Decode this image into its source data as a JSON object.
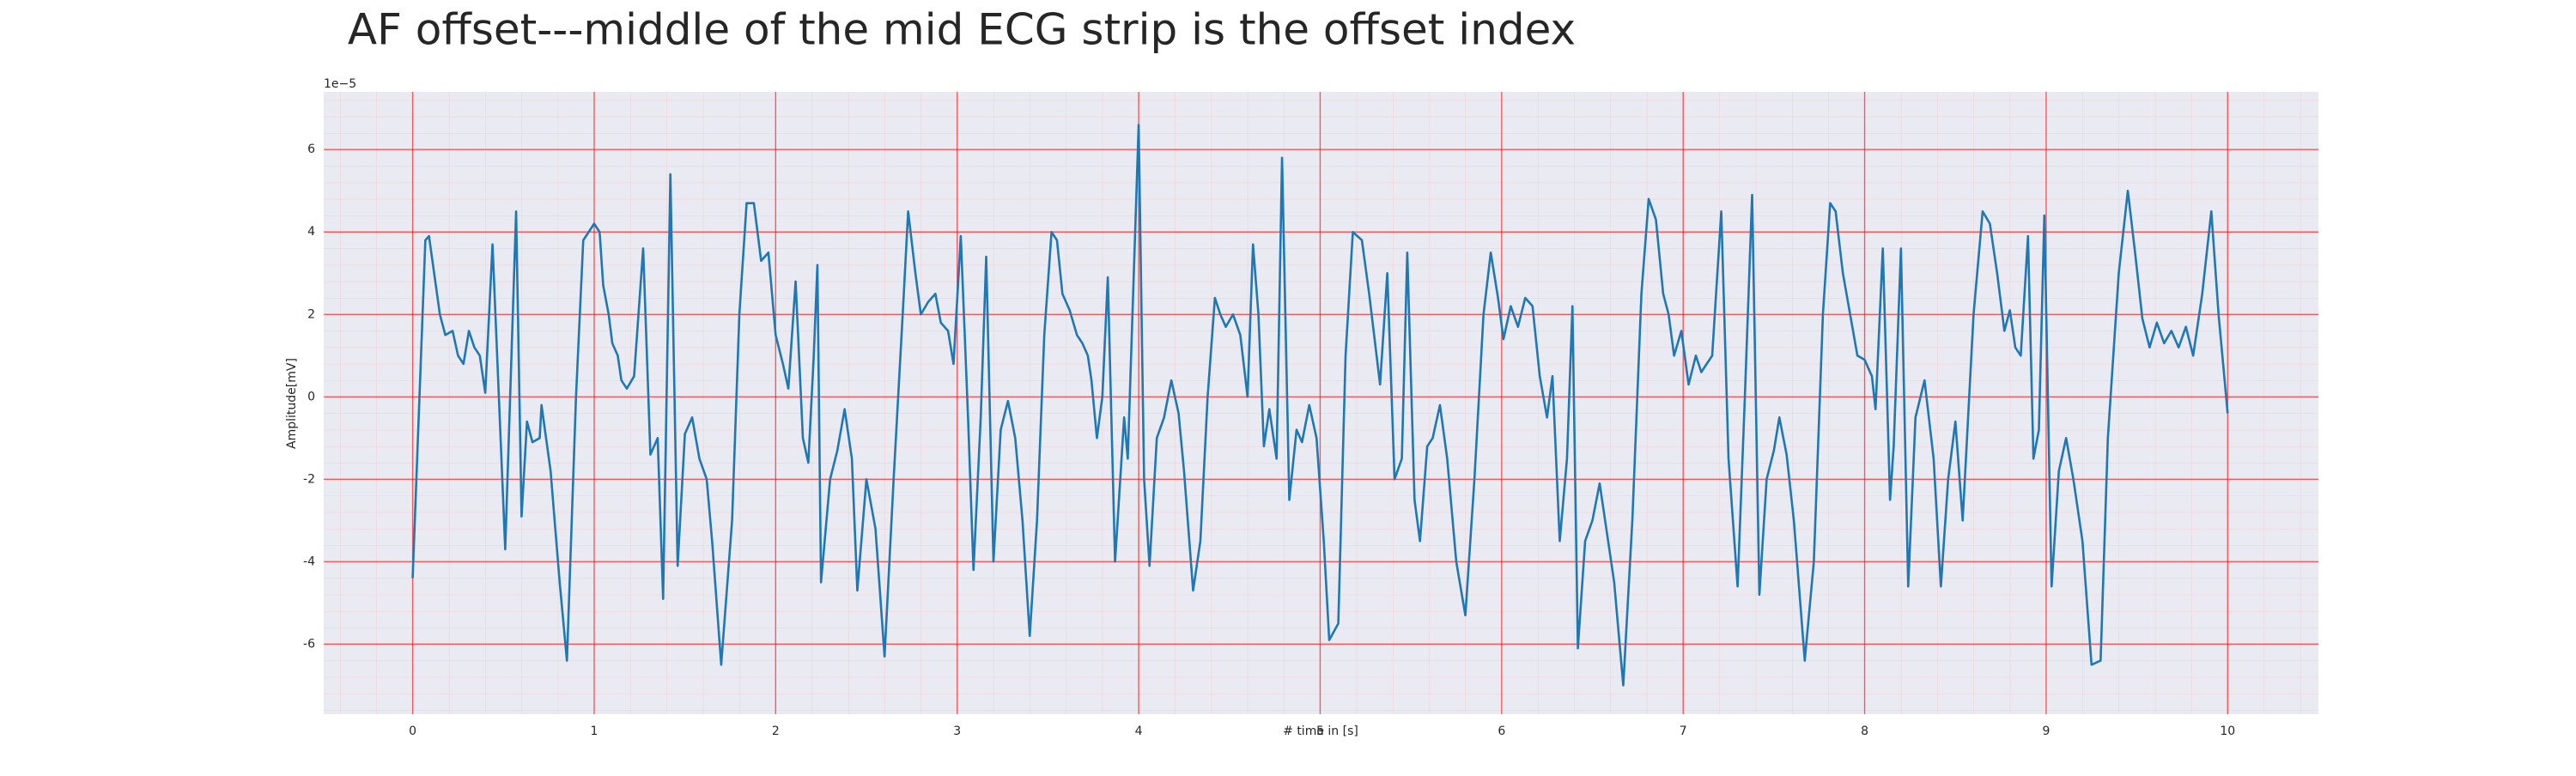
{
  "chart_data": {
    "type": "line",
    "title": "AF offset---middle of the mid ECG strip is the offset index",
    "xlabel": "# time in [s]",
    "ylabel": "Amplitude[mV]",
    "y_offset_label": "1e−5",
    "color": "#1f77b4",
    "grid": true,
    "grid_color": "#ff0000",
    "xlim": [
      -0.49,
      10.5
    ],
    "ylim": [
      -7.7,
      7.4
    ],
    "xticks": [
      0,
      1,
      2,
      3,
      4,
      5,
      6,
      7,
      8,
      9,
      10
    ],
    "yticks": [
      -6,
      -4,
      -2,
      0,
      2,
      4,
      6
    ],
    "x": [
      0,
      0.07,
      0.09,
      0.15,
      0.18,
      0.22,
      0.25,
      0.28,
      0.31,
      0.34,
      0.37,
      0.4,
      0.44,
      0.51,
      0.57,
      0.6,
      0.63,
      0.66,
      0.7,
      0.71,
      0.76,
      0.81,
      0.85,
      0.9,
      0.94,
      1.0,
      1.03,
      1.05,
      1.08,
      1.1,
      1.13,
      1.15,
      1.18,
      1.22,
      1.27,
      1.31,
      1.35,
      1.38,
      1.42,
      1.46,
      1.5,
      1.54,
      1.58,
      1.62,
      1.65,
      1.7,
      1.76,
      1.8,
      1.84,
      1.88,
      1.92,
      1.96,
      2.0,
      2.04,
      2.07,
      2.11,
      2.15,
      2.18,
      2.21,
      2.23,
      2.25,
      2.3,
      2.34,
      2.38,
      2.42,
      2.45,
      2.5,
      2.55,
      2.6,
      2.65,
      2.7,
      2.73,
      2.77,
      2.8,
      2.84,
      2.88,
      2.91,
      2.95,
      2.98,
      3.02,
      3.06,
      3.09,
      3.13,
      3.16,
      3.2,
      3.24,
      3.28,
      3.32,
      3.36,
      3.4,
      3.44,
      3.48,
      3.52,
      3.55,
      3.58,
      3.62,
      3.66,
      3.69,
      3.72,
      3.74,
      3.77,
      3.8,
      3.83,
      3.87,
      3.92,
      3.94,
      4.0,
      4.03,
      4.06,
      4.1,
      4.14,
      4.18,
      4.22,
      4.25,
      4.3,
      4.34,
      4.38,
      4.42,
      4.45,
      4.48,
      4.52,
      4.56,
      4.6,
      4.63,
      4.66,
      4.69,
      4.72,
      4.76,
      4.79,
      4.83,
      4.87,
      4.9,
      4.94,
      4.98,
      5.02,
      5.05,
      5.1,
      5.14,
      5.18,
      5.23,
      5.27,
      5.3,
      5.33,
      5.37,
      5.41,
      5.45,
      5.48,
      5.52,
      5.55,
      5.59,
      5.62,
      5.66,
      5.7,
      5.75,
      5.8,
      5.85,
      5.9,
      5.94,
      5.98,
      6.01,
      6.05,
      6.09,
      6.13,
      6.17,
      6.21,
      6.25,
      6.28,
      6.32,
      6.36,
      6.39,
      6.42,
      6.46,
      6.5,
      6.54,
      6.57,
      6.62,
      6.67,
      6.72,
      6.77,
      6.81,
      6.85,
      6.89,
      6.92,
      6.95,
      6.99,
      7.03,
      7.07,
      7.1,
      7.13,
      7.16,
      7.21,
      7.25,
      7.3,
      7.34,
      7.38,
      7.42,
      7.46,
      7.5,
      7.53,
      7.57,
      7.61,
      7.67,
      7.72,
      7.77,
      7.81,
      7.84,
      7.88,
      7.92,
      7.96,
      8.0,
      8.04,
      8.06,
      8.1,
      8.14,
      8.16,
      8.2,
      8.24,
      8.28,
      8.33,
      8.38,
      8.42,
      8.46,
      8.5,
      8.54,
      8.6,
      8.65,
      8.69,
      8.73,
      8.77,
      8.8,
      8.83,
      8.86,
      8.9,
      8.93,
      8.96,
      8.99,
      9.03,
      9.07,
      9.11,
      9.15,
      9.2,
      9.25,
      9.3,
      9.34,
      9.4,
      9.45,
      9.49,
      9.53,
      9.57,
      9.61,
      9.65,
      9.69,
      9.73,
      9.77,
      9.81,
      9.86,
      9.91,
      9.95,
      10.0
    ],
    "values": [
      -4.4,
      3.8,
      3.9,
      2.0,
      1.5,
      1.6,
      1.0,
      0.8,
      1.6,
      1.2,
      1.0,
      0.1,
      3.7,
      -3.7,
      4.5,
      -2.9,
      -0.6,
      -1.1,
      -1.0,
      -0.2,
      -1.8,
      -4.5,
      -6.4,
      0.0,
      3.8,
      4.2,
      4.0,
      2.7,
      2.0,
      1.3,
      1.0,
      0.4,
      0.2,
      0.5,
      3.6,
      -1.4,
      -1.0,
      -4.9,
      5.4,
      -4.1,
      -0.9,
      -0.5,
      -1.5,
      -2.0,
      -3.5,
      -6.5,
      -3.0,
      2.0,
      4.7,
      4.7,
      3.3,
      3.5,
      1.5,
      0.8,
      0.2,
      2.8,
      -1.0,
      -1.6,
      1.0,
      3.2,
      -4.5,
      -2.0,
      -1.3,
      -0.3,
      -1.5,
      -4.7,
      -2.0,
      -3.2,
      -6.3,
      -2.0,
      2.0,
      4.5,
      3.0,
      2.0,
      2.3,
      2.5,
      1.8,
      1.6,
      0.8,
      3.9,
      -0.5,
      -4.2,
      -0.5,
      3.4,
      -4.0,
      -0.8,
      -0.1,
      -1.0,
      -3.0,
      -5.8,
      -3.0,
      1.5,
      4.0,
      3.8,
      2.5,
      2.1,
      1.5,
      1.3,
      1.0,
      0.4,
      -1.0,
      0.0,
      2.9,
      -4.0,
      -0.5,
      -1.5,
      6.6,
      -2.0,
      -4.1,
      -1.0,
      -0.5,
      0.4,
      -0.4,
      -1.8,
      -4.7,
      -3.5,
      0.0,
      2.4,
      2.0,
      1.7,
      2.0,
      1.5,
      0.0,
      3.7,
      2.0,
      -1.2,
      -0.3,
      -1.5,
      5.8,
      -2.5,
      -0.8,
      -1.1,
      -0.2,
      -1.0,
      -3.5,
      -5.9,
      -5.5,
      1.0,
      4.0,
      3.8,
      2.5,
      1.4,
      0.3,
      3.0,
      -2.0,
      -1.5,
      3.5,
      -2.5,
      -3.5,
      -1.2,
      -1.0,
      -0.2,
      -1.5,
      -4.0,
      -5.3,
      -2.0,
      2.0,
      3.5,
      2.4,
      1.4,
      2.2,
      1.7,
      2.4,
      2.2,
      0.5,
      -0.5,
      0.5,
      -3.5,
      -1.5,
      2.2,
      -6.1,
      -3.5,
      -3.0,
      -2.1,
      -3.0,
      -4.5,
      -7.0,
      -3.0,
      2.5,
      4.8,
      4.3,
      2.5,
      2.0,
      1.0,
      1.6,
      0.3,
      1.0,
      0.6,
      0.8,
      1.0,
      4.5,
      -1.5,
      -4.6,
      0.0,
      4.9,
      -4.8,
      -2.0,
      -1.3,
      -0.5,
      -1.4,
      -3.0,
      -6.4,
      -4.0,
      2.0,
      4.7,
      4.5,
      3.0,
      2.0,
      1.0,
      0.9,
      0.5,
      -0.3,
      3.6,
      -2.5,
      -1.2,
      3.6,
      -4.6,
      -0.5,
      0.4,
      -1.5,
      -4.6,
      -2.0,
      -0.6,
      -3.0,
      2.0,
      4.5,
      4.2,
      3.0,
      1.6,
      2.1,
      1.2,
      1.0,
      3.9,
      -1.5,
      -0.8,
      4.4,
      -4.6,
      -1.8,
      -1.0,
      -2.0,
      -3.5,
      -6.5,
      -6.4,
      -1.0,
      3.0,
      5.0,
      3.5,
      1.9,
      1.2,
      1.8,
      1.3,
      1.6,
      1.2,
      1.7,
      1.0,
      2.5,
      4.5,
      2.0,
      -0.4
    ]
  }
}
